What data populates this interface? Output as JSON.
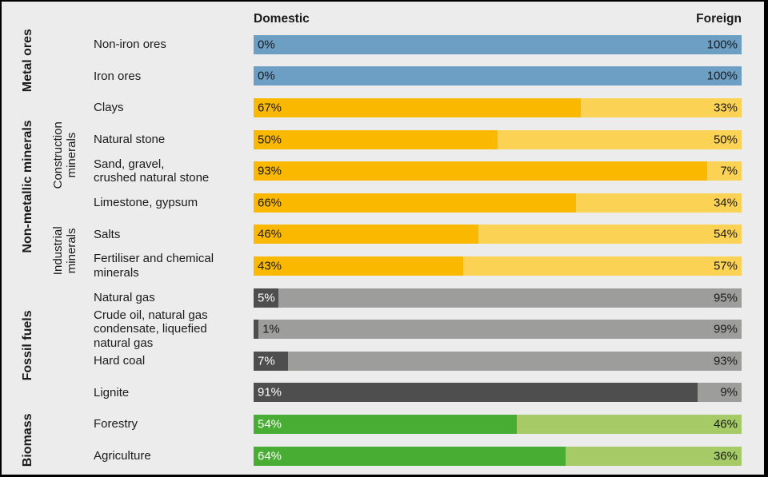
{
  "page": {
    "background": "#ECECEC",
    "border_color": "#000000"
  },
  "header": {
    "domestic": "Domestic",
    "foreign": "Foreign"
  },
  "chart_data": {
    "type": "bar",
    "orientation": "horizontal",
    "stacked": true,
    "unit": "%",
    "xlim": [
      0,
      100
    ],
    "series_labels": [
      "Domestic",
      "Foreign"
    ],
    "legend_position": "top (Domestic left, Foreign right)",
    "grid": false,
    "rows": [
      {
        "label": "Non-iron ores",
        "domestic": 0,
        "foreign": 100,
        "palette": "blue"
      },
      {
        "label": "Iron ores",
        "domestic": 0,
        "foreign": 100,
        "palette": "blue"
      },
      {
        "label": "Clays",
        "domestic": 67,
        "foreign": 33,
        "palette": "orange"
      },
      {
        "label": "Natural stone",
        "domestic": 50,
        "foreign": 50,
        "palette": "orange"
      },
      {
        "label": "Sand, gravel,\ncrushed natural stone",
        "domestic": 93,
        "foreign": 7,
        "palette": "orange"
      },
      {
        "label": "Limestone, gypsum",
        "domestic": 66,
        "foreign": 34,
        "palette": "orange"
      },
      {
        "label": "Salts",
        "domestic": 46,
        "foreign": 54,
        "palette": "orange"
      },
      {
        "label": "Fertiliser and chemical\nminerals",
        "domestic": 43,
        "foreign": 57,
        "palette": "orange"
      },
      {
        "label": "Natural gas",
        "domestic": 5,
        "foreign": 95,
        "palette": "gray"
      },
      {
        "label": "Crude oil, natural gas\ncondensate, liquefied\nnatural gas",
        "domestic": 1,
        "foreign": 99,
        "palette": "gray"
      },
      {
        "label": "Hard coal",
        "domestic": 7,
        "foreign": 93,
        "palette": "gray"
      },
      {
        "label": "Lignite",
        "domestic": 91,
        "foreign": 9,
        "palette": "gray"
      },
      {
        "label": "Forestry",
        "domestic": 54,
        "foreign": 46,
        "palette": "green"
      },
      {
        "label": "Agriculture",
        "domestic": 64,
        "foreign": 36,
        "palette": "green"
      }
    ],
    "groups": [
      {
        "label": "Metal ores",
        "start": 0,
        "end": 1
      },
      {
        "label": "Non-metallic minerals",
        "start": 2,
        "end": 7
      },
      {
        "label": "Fossil fuels",
        "start": 8,
        "end": 11
      },
      {
        "label": "Biomass",
        "start": 12,
        "end": 13
      }
    ],
    "subgroups": [
      {
        "label": "Construction\nminerals",
        "start": 2,
        "end": 5
      },
      {
        "label": "Industrial\nminerals",
        "start": 6,
        "end": 7
      }
    ],
    "palettes": {
      "blue": {
        "domestic": "#4380AE",
        "foreign": "#6D9EC4",
        "domestic_text": "#1A1A1A"
      },
      "orange": {
        "domestic": "#FAB900",
        "foreign": "#FCD255",
        "domestic_text": "#1A1A1A"
      },
      "gray": {
        "domestic": "#4E4E4E",
        "foreign": "#9D9D9C",
        "domestic_text": "#FFFFFF"
      },
      "green": {
        "domestic": "#48AD33",
        "foreign": "#A5CA66",
        "domestic_text": "#FFFFFF"
      }
    },
    "value_label_color_on_light": "#1A1A1A"
  }
}
